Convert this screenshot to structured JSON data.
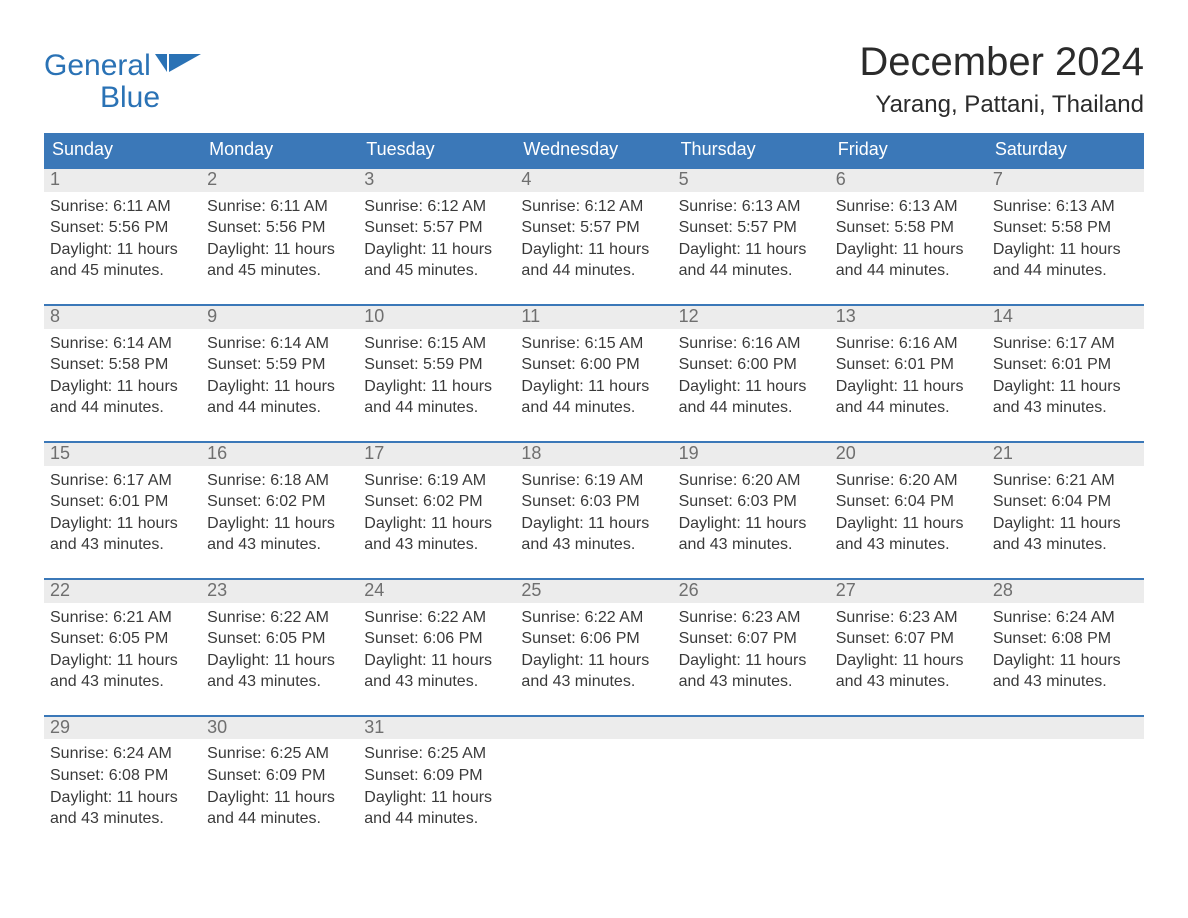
{
  "brand": {
    "line1": "General",
    "line2": "Blue",
    "text_color": "#2a72b5",
    "icon_fill": "#2a72b5"
  },
  "title": "December 2024",
  "location": "Yarang, Pattani, Thailand",
  "colors": {
    "header_bg": "#3b78b8",
    "header_text": "#ffffff",
    "week_divider": "#3b78b8",
    "daynum_bg": "#ececec",
    "daynum_text": "#6f6f6f",
    "body_text": "#3a3a3a",
    "page_bg": "#ffffff"
  },
  "fonts": {
    "title_size_pt": 30,
    "location_size_pt": 18,
    "dayname_size_pt": 14,
    "body_size_pt": 12
  },
  "day_names": [
    "Sunday",
    "Monday",
    "Tuesday",
    "Wednesday",
    "Thursday",
    "Friday",
    "Saturday"
  ],
  "weeks": [
    [
      {
        "day": "1",
        "sunrise": "Sunrise: 6:11 AM",
        "sunset": "Sunset: 5:56 PM",
        "daylight1": "Daylight: 11 hours",
        "daylight2": "and 45 minutes."
      },
      {
        "day": "2",
        "sunrise": "Sunrise: 6:11 AM",
        "sunset": "Sunset: 5:56 PM",
        "daylight1": "Daylight: 11 hours",
        "daylight2": "and 45 minutes."
      },
      {
        "day": "3",
        "sunrise": "Sunrise: 6:12 AM",
        "sunset": "Sunset: 5:57 PM",
        "daylight1": "Daylight: 11 hours",
        "daylight2": "and 45 minutes."
      },
      {
        "day": "4",
        "sunrise": "Sunrise: 6:12 AM",
        "sunset": "Sunset: 5:57 PM",
        "daylight1": "Daylight: 11 hours",
        "daylight2": "and 44 minutes."
      },
      {
        "day": "5",
        "sunrise": "Sunrise: 6:13 AM",
        "sunset": "Sunset: 5:57 PM",
        "daylight1": "Daylight: 11 hours",
        "daylight2": "and 44 minutes."
      },
      {
        "day": "6",
        "sunrise": "Sunrise: 6:13 AM",
        "sunset": "Sunset: 5:58 PM",
        "daylight1": "Daylight: 11 hours",
        "daylight2": "and 44 minutes."
      },
      {
        "day": "7",
        "sunrise": "Sunrise: 6:13 AM",
        "sunset": "Sunset: 5:58 PM",
        "daylight1": "Daylight: 11 hours",
        "daylight2": "and 44 minutes."
      }
    ],
    [
      {
        "day": "8",
        "sunrise": "Sunrise: 6:14 AM",
        "sunset": "Sunset: 5:58 PM",
        "daylight1": "Daylight: 11 hours",
        "daylight2": "and 44 minutes."
      },
      {
        "day": "9",
        "sunrise": "Sunrise: 6:14 AM",
        "sunset": "Sunset: 5:59 PM",
        "daylight1": "Daylight: 11 hours",
        "daylight2": "and 44 minutes."
      },
      {
        "day": "10",
        "sunrise": "Sunrise: 6:15 AM",
        "sunset": "Sunset: 5:59 PM",
        "daylight1": "Daylight: 11 hours",
        "daylight2": "and 44 minutes."
      },
      {
        "day": "11",
        "sunrise": "Sunrise: 6:15 AM",
        "sunset": "Sunset: 6:00 PM",
        "daylight1": "Daylight: 11 hours",
        "daylight2": "and 44 minutes."
      },
      {
        "day": "12",
        "sunrise": "Sunrise: 6:16 AM",
        "sunset": "Sunset: 6:00 PM",
        "daylight1": "Daylight: 11 hours",
        "daylight2": "and 44 minutes."
      },
      {
        "day": "13",
        "sunrise": "Sunrise: 6:16 AM",
        "sunset": "Sunset: 6:01 PM",
        "daylight1": "Daylight: 11 hours",
        "daylight2": "and 44 minutes."
      },
      {
        "day": "14",
        "sunrise": "Sunrise: 6:17 AM",
        "sunset": "Sunset: 6:01 PM",
        "daylight1": "Daylight: 11 hours",
        "daylight2": "and 43 minutes."
      }
    ],
    [
      {
        "day": "15",
        "sunrise": "Sunrise: 6:17 AM",
        "sunset": "Sunset: 6:01 PM",
        "daylight1": "Daylight: 11 hours",
        "daylight2": "and 43 minutes."
      },
      {
        "day": "16",
        "sunrise": "Sunrise: 6:18 AM",
        "sunset": "Sunset: 6:02 PM",
        "daylight1": "Daylight: 11 hours",
        "daylight2": "and 43 minutes."
      },
      {
        "day": "17",
        "sunrise": "Sunrise: 6:19 AM",
        "sunset": "Sunset: 6:02 PM",
        "daylight1": "Daylight: 11 hours",
        "daylight2": "and 43 minutes."
      },
      {
        "day": "18",
        "sunrise": "Sunrise: 6:19 AM",
        "sunset": "Sunset: 6:03 PM",
        "daylight1": "Daylight: 11 hours",
        "daylight2": "and 43 minutes."
      },
      {
        "day": "19",
        "sunrise": "Sunrise: 6:20 AM",
        "sunset": "Sunset: 6:03 PM",
        "daylight1": "Daylight: 11 hours",
        "daylight2": "and 43 minutes."
      },
      {
        "day": "20",
        "sunrise": "Sunrise: 6:20 AM",
        "sunset": "Sunset: 6:04 PM",
        "daylight1": "Daylight: 11 hours",
        "daylight2": "and 43 minutes."
      },
      {
        "day": "21",
        "sunrise": "Sunrise: 6:21 AM",
        "sunset": "Sunset: 6:04 PM",
        "daylight1": "Daylight: 11 hours",
        "daylight2": "and 43 minutes."
      }
    ],
    [
      {
        "day": "22",
        "sunrise": "Sunrise: 6:21 AM",
        "sunset": "Sunset: 6:05 PM",
        "daylight1": "Daylight: 11 hours",
        "daylight2": "and 43 minutes."
      },
      {
        "day": "23",
        "sunrise": "Sunrise: 6:22 AM",
        "sunset": "Sunset: 6:05 PM",
        "daylight1": "Daylight: 11 hours",
        "daylight2": "and 43 minutes."
      },
      {
        "day": "24",
        "sunrise": "Sunrise: 6:22 AM",
        "sunset": "Sunset: 6:06 PM",
        "daylight1": "Daylight: 11 hours",
        "daylight2": "and 43 minutes."
      },
      {
        "day": "25",
        "sunrise": "Sunrise: 6:22 AM",
        "sunset": "Sunset: 6:06 PM",
        "daylight1": "Daylight: 11 hours",
        "daylight2": "and 43 minutes."
      },
      {
        "day": "26",
        "sunrise": "Sunrise: 6:23 AM",
        "sunset": "Sunset: 6:07 PM",
        "daylight1": "Daylight: 11 hours",
        "daylight2": "and 43 minutes."
      },
      {
        "day": "27",
        "sunrise": "Sunrise: 6:23 AM",
        "sunset": "Sunset: 6:07 PM",
        "daylight1": "Daylight: 11 hours",
        "daylight2": "and 43 minutes."
      },
      {
        "day": "28",
        "sunrise": "Sunrise: 6:24 AM",
        "sunset": "Sunset: 6:08 PM",
        "daylight1": "Daylight: 11 hours",
        "daylight2": "and 43 minutes."
      }
    ],
    [
      {
        "day": "29",
        "sunrise": "Sunrise: 6:24 AM",
        "sunset": "Sunset: 6:08 PM",
        "daylight1": "Daylight: 11 hours",
        "daylight2": "and 43 minutes."
      },
      {
        "day": "30",
        "sunrise": "Sunrise: 6:25 AM",
        "sunset": "Sunset: 6:09 PM",
        "daylight1": "Daylight: 11 hours",
        "daylight2": "and 44 minutes."
      },
      {
        "day": "31",
        "sunrise": "Sunrise: 6:25 AM",
        "sunset": "Sunset: 6:09 PM",
        "daylight1": "Daylight: 11 hours",
        "daylight2": "and 44 minutes."
      },
      {
        "empty": true
      },
      {
        "empty": true
      },
      {
        "empty": true
      },
      {
        "empty": true
      }
    ]
  ]
}
